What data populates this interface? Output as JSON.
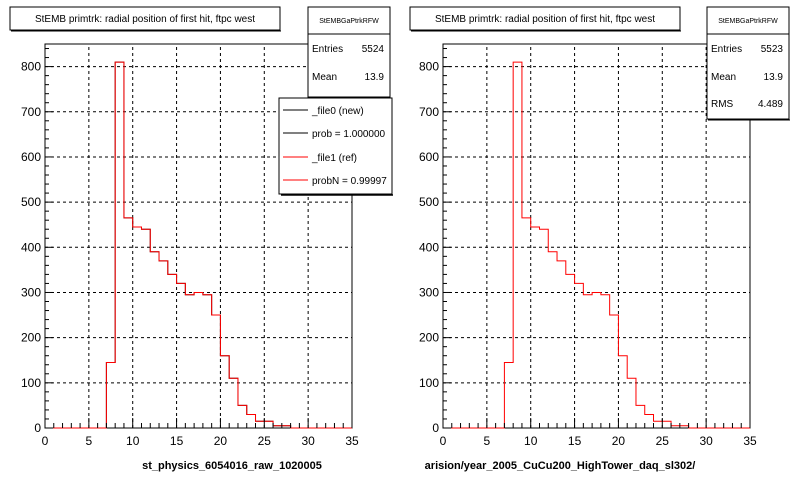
{
  "panels": [
    {
      "title": "StEMB primtrk: radial position of first hit, ftpc west",
      "xlabel": "st_physics_6054016_raw_1020005",
      "stats": {
        "name": "StEMBGaPtrkRFW",
        "rows": [
          {
            "label": "Entries",
            "value": "5524"
          },
          {
            "label": "Mean",
            "value": "13.9"
          }
        ]
      },
      "legend": [
        {
          "label": "_file0 (new)",
          "color": "#000000"
        },
        {
          "label": "prob = 1.000000",
          "color": "#000000"
        },
        {
          "label": "_file1 (ref)",
          "color": "#ff0000"
        },
        {
          "label": "probN = 0.99997",
          "color": "#ff0000"
        }
      ]
    },
    {
      "title": "StEMB primtrk: radial position of first hit, ftpc west",
      "xlabel": "arision/year_2005_CuCu200_HighTower_daq_sl302/",
      "stats": {
        "name": "StEMBGaPtrkRFW",
        "rows": [
          {
            "label": "Entries",
            "value": "5523"
          },
          {
            "label": "Mean",
            "value": "13.9"
          },
          {
            "label": "RMS",
            "value": "4.489"
          }
        ]
      },
      "legend": []
    }
  ],
  "chart_data": [
    {
      "type": "line",
      "subtype": "step-histogram",
      "title": "StEMB primtrk: radial position of first hit, ftpc west",
      "xlabel": "st_physics_6054016_raw_1020005",
      "ylabel": "",
      "xlim": [
        0,
        35
      ],
      "ylim": [
        0,
        850
      ],
      "xticks": [
        0,
        5,
        10,
        15,
        20,
        25,
        30,
        35
      ],
      "yticks": [
        0,
        100,
        200,
        300,
        400,
        500,
        600,
        700,
        800
      ],
      "grid": true,
      "legend_position": "top-right",
      "bin_edges": [
        0,
        1,
        2,
        3,
        4,
        5,
        6,
        7,
        8,
        9,
        10,
        11,
        12,
        13,
        14,
        15,
        16,
        17,
        18,
        19,
        20,
        21,
        22,
        23,
        24,
        25,
        26,
        27,
        28,
        29,
        30,
        31,
        32,
        33,
        34,
        35
      ],
      "series": [
        {
          "name": "_file0 (new)",
          "color": "#000000",
          "values": [
            0,
            0,
            0,
            0,
            0,
            0,
            0,
            145,
            810,
            465,
            445,
            440,
            390,
            370,
            340,
            320,
            295,
            300,
            295,
            250,
            160,
            110,
            50,
            30,
            15,
            15,
            5,
            5,
            0,
            0,
            0,
            0,
            0,
            0,
            0
          ]
        },
        {
          "name": "_file1 (ref)",
          "color": "#ff0000",
          "values": [
            0,
            0,
            0,
            0,
            0,
            0,
            0,
            145,
            810,
            465,
            445,
            440,
            390,
            370,
            340,
            320,
            295,
            300,
            295,
            250,
            160,
            110,
            50,
            30,
            15,
            15,
            5,
            5,
            0,
            0,
            0,
            0,
            0,
            0,
            0
          ]
        }
      ]
    },
    {
      "type": "line",
      "subtype": "step-histogram",
      "title": "StEMB primtrk: radial position of first hit, ftpc west",
      "xlabel": "arision/year_2005_CuCu200_HighTower_daq_sl302/",
      "ylabel": "",
      "xlim": [
        0,
        35
      ],
      "ylim": [
        0,
        850
      ],
      "xticks": [
        0,
        5,
        10,
        15,
        20,
        25,
        30,
        35
      ],
      "yticks": [
        0,
        100,
        200,
        300,
        400,
        500,
        600,
        700,
        800
      ],
      "grid": true,
      "bin_edges": [
        0,
        1,
        2,
        3,
        4,
        5,
        6,
        7,
        8,
        9,
        10,
        11,
        12,
        13,
        14,
        15,
        16,
        17,
        18,
        19,
        20,
        21,
        22,
        23,
        24,
        25,
        26,
        27,
        28,
        29,
        30,
        31,
        32,
        33,
        34,
        35
      ],
      "series": [
        {
          "name": "",
          "color": "#ff0000",
          "values": [
            0,
            0,
            0,
            0,
            0,
            0,
            0,
            145,
            810,
            465,
            445,
            440,
            390,
            370,
            340,
            320,
            295,
            300,
            295,
            250,
            160,
            110,
            50,
            30,
            15,
            15,
            5,
            5,
            0,
            0,
            0,
            0,
            0,
            0,
            0
          ]
        }
      ]
    }
  ]
}
